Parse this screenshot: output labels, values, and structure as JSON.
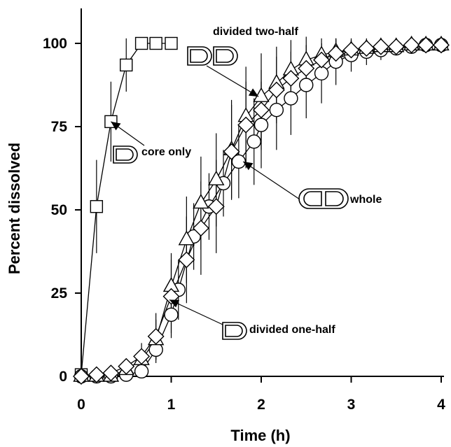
{
  "chart_data": {
    "type": "scatter",
    "xlabel": "Time (h)",
    "ylabel": "Percent dissolved",
    "xlim": [
      0,
      4
    ],
    "ylim": [
      0,
      100
    ],
    "x_ticks": [
      "0",
      "1",
      "2",
      "3",
      "4"
    ],
    "y_ticks": [
      "0",
      "25",
      "50",
      "75",
      "100"
    ],
    "grid": false,
    "legend": "none",
    "series": [
      {
        "marker": "square",
        "x": [
          0,
          0.17,
          0.33,
          0.5,
          0.67,
          0.83,
          1.0
        ],
        "y": [
          0.5,
          51,
          76.5,
          93.5,
          100,
          100,
          100
        ],
        "error": [
          0,
          14,
          12,
          8,
          0,
          0,
          0
        ]
      },
      {
        "marker": "circle",
        "x": [
          0,
          0.17,
          0.33,
          0.5,
          0.67,
          0.83,
          1.0,
          1.08,
          1.25,
          1.42,
          1.58,
          1.75,
          1.92,
          2.0,
          2.17,
          2.33,
          2.5,
          2.67,
          2.83,
          3.0,
          3.17,
          3.33,
          3.5,
          3.67,
          3.83,
          4.0
        ],
        "y": [
          0,
          0,
          0,
          0.5,
          1.5,
          8,
          18.5,
          26,
          42,
          51,
          58,
          64.5,
          70.5,
          75.5,
          80,
          83.5,
          87.5,
          91,
          94.5,
          96.5,
          97.5,
          98,
          98.5,
          99,
          99.5,
          99.5
        ],
        "error": [
          0,
          0,
          0,
          0,
          1,
          4,
          7,
          9,
          10,
          10,
          10,
          11,
          13,
          13,
          12,
          11,
          10,
          9,
          7,
          5,
          4,
          3,
          2,
          2,
          1,
          1
        ]
      },
      {
        "marker": "triangle",
        "x": [
          0,
          0.17,
          0.33,
          0.5,
          0.67,
          0.83,
          1.0,
          1.17,
          1.33,
          1.5,
          1.67,
          1.83,
          2.0,
          2.17,
          2.33,
          2.5,
          2.67,
          2.83,
          3.0,
          3.17,
          3.33,
          3.5,
          3.67,
          3.83,
          4.0
        ],
        "y": [
          0,
          0,
          0,
          2,
          5,
          11,
          27,
          41,
          52,
          59,
          68,
          78,
          84,
          88,
          92,
          95,
          96.5,
          97.5,
          98,
          98.5,
          99,
          99,
          99.5,
          99.5,
          99.5
        ],
        "error": [
          0,
          0,
          0,
          1,
          3,
          6,
          10,
          13,
          14,
          14,
          15,
          15,
          13,
          11,
          9,
          7,
          5,
          4,
          3,
          2,
          2,
          1,
          1,
          1,
          1
        ]
      },
      {
        "marker": "diamond",
        "x": [
          0,
          0.17,
          0.33,
          0.5,
          0.67,
          0.83,
          1.0,
          1.17,
          1.33,
          1.5,
          1.67,
          1.83,
          2.0,
          2.17,
          2.33,
          2.5,
          2.67,
          2.83,
          3.0,
          3.17,
          3.33,
          3.5,
          3.67,
          3.83,
          4.0
        ],
        "y": [
          0,
          0.5,
          1,
          3,
          6,
          12,
          24,
          35,
          44.5,
          51,
          67.5,
          75.5,
          80,
          86,
          89.5,
          92.5,
          95,
          97,
          98,
          98.5,
          99,
          99,
          99.5,
          99.5,
          99.5
        ],
        "error": [
          0,
          0,
          1,
          2,
          4,
          7,
          11,
          13,
          14,
          14,
          14,
          13,
          12,
          10,
          8,
          7,
          5,
          4,
          3,
          2,
          2,
          1,
          1,
          1,
          1
        ]
      }
    ],
    "annotations": [
      {
        "text": "core only",
        "icon": "half-tablet-icon",
        "target": [
          0.33,
          76.5
        ]
      },
      {
        "text": "divided two-half",
        "icon": "two-half-tablets-icon",
        "target": [
          1.97,
          84
        ]
      },
      {
        "text": "whole",
        "icon": "whole-tablet-icon",
        "target": [
          1.8,
          64.5
        ]
      },
      {
        "text": "divided one-half",
        "icon": "half-tablet-icon",
        "target": [
          0.98,
          23
        ]
      }
    ]
  }
}
